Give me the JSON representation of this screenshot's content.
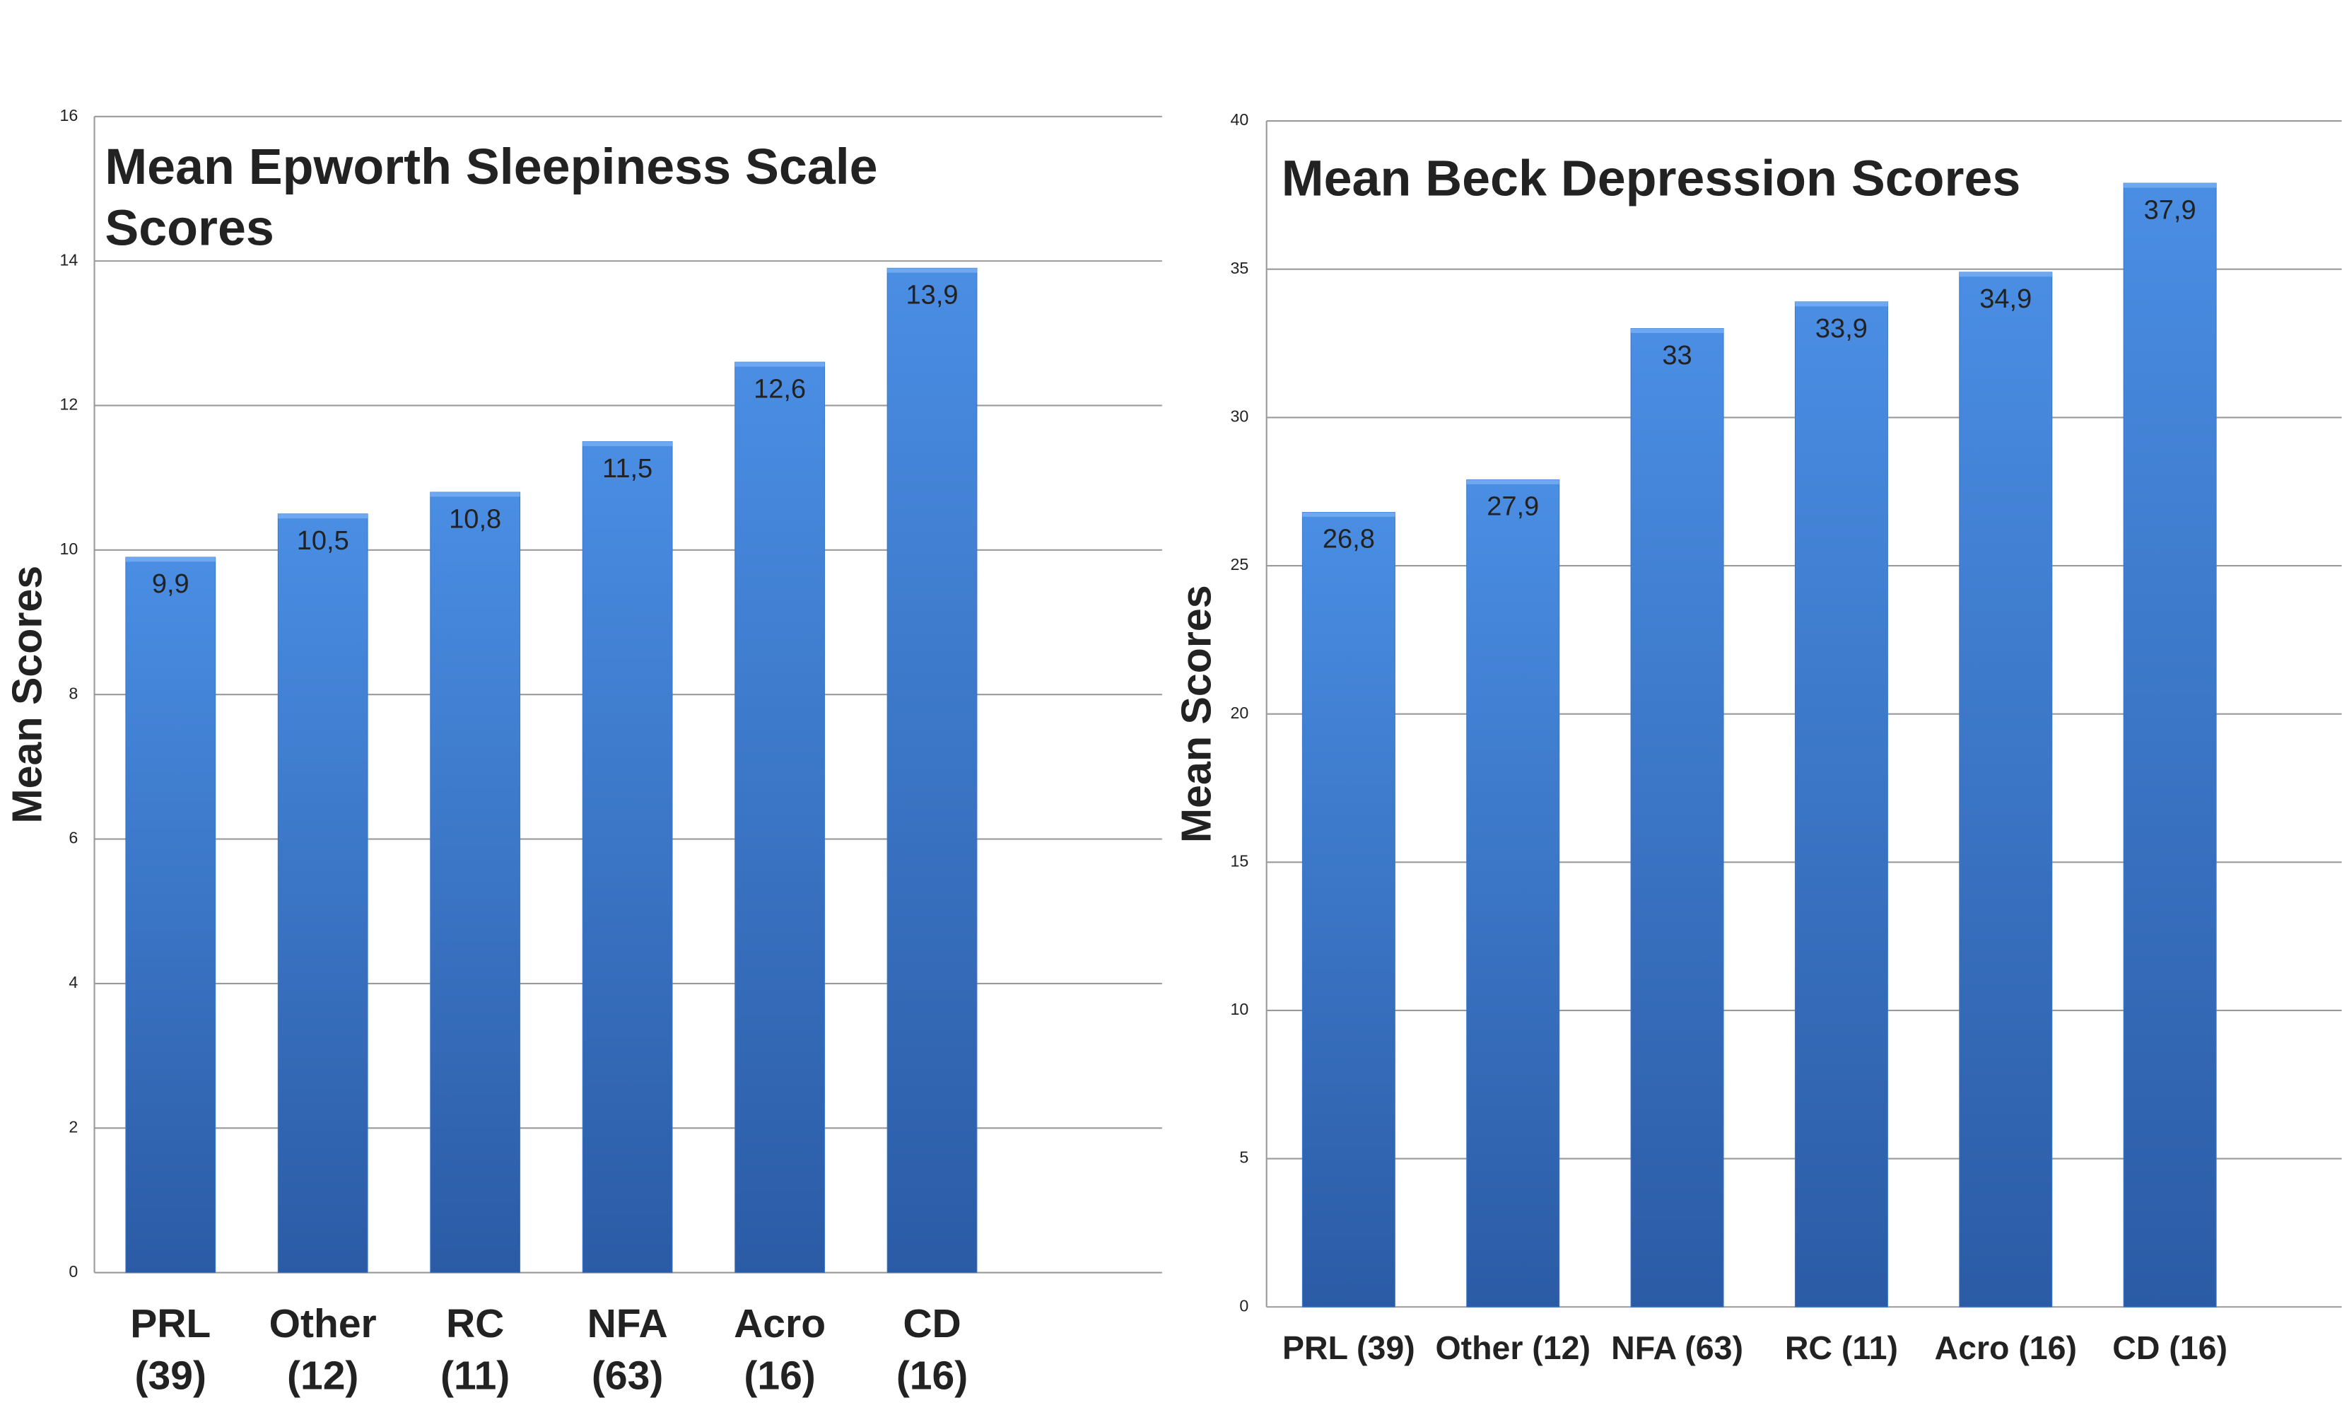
{
  "chart_data": [
    {
      "type": "bar",
      "title": "Mean Epworth Sleepiness Scale Scores",
      "y_label": "Mean Scores",
      "categories": [
        [
          "PRL",
          "(39)"
        ],
        [
          "Other",
          "(12)"
        ],
        [
          "RC",
          "(11)"
        ],
        [
          "NFA",
          "(63)"
        ],
        [
          "Acro",
          "(16)"
        ],
        [
          "CD",
          "(16)"
        ]
      ],
      "values": [
        9.9,
        10.5,
        10.8,
        11.5,
        12.6,
        13.9
      ],
      "value_labels": [
        "9,9",
        "10,5",
        "10,8",
        "11,5",
        "12,6",
        "13,9"
      ],
      "color": "#3a78cc",
      "ylim": [
        0,
        16
      ],
      "yticks": [
        0,
        2,
        4,
        6,
        8,
        10,
        12,
        14,
        16
      ],
      "grid": true
    },
    {
      "type": "bar",
      "title": "Mean Beck Depression Scores",
      "y_label": "Mean Scores",
      "categories": [
        "PRL (39)",
        "Other (12)",
        "NFA  (63)",
        "RC   (11)",
        "Acro  (16)",
        "CD  (16)"
      ],
      "values": [
        26.8,
        27.9,
        33,
        33.9,
        34.9,
        37.9
      ],
      "value_labels": [
        "26,8",
        "27,9",
        "33",
        "33,9",
        "34,9",
        "37,9"
      ],
      "color": "#3a78cc",
      "ylim": [
        0,
        40
      ],
      "yticks": [
        0,
        5,
        10,
        15,
        20,
        25,
        30,
        35,
        40
      ],
      "grid": true
    }
  ]
}
